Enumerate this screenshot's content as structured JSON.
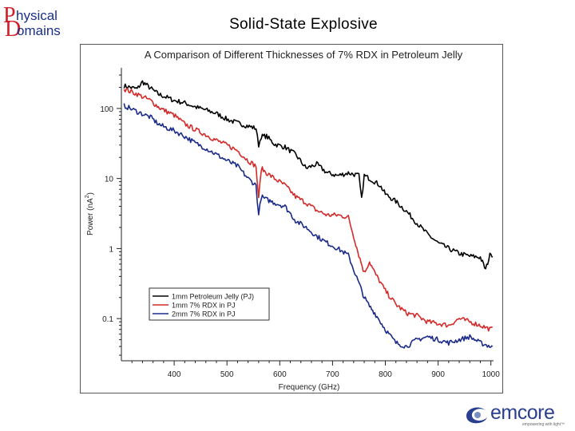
{
  "logo": {
    "top_initial": "P",
    "top_text": "hysical",
    "bottom_initial": "D",
    "bottom_text": "omains",
    "colors": {
      "red": "#d11f2a",
      "blue": "#1a2f8a"
    }
  },
  "page_title": "Solid-State Explosive",
  "chart_data": {
    "type": "line",
    "title": "A Comparison of Different Thicknesses of 7% RDX in Petroleum Jelly",
    "xlabel": "Frequency (GHz)",
    "ylabel": "Power (nA²)",
    "ylabel_parts": {
      "base": "Power (nA",
      "sup": "2",
      "close": ")"
    },
    "yscale": "log",
    "xlim": [
      300,
      1005
    ],
    "ylim": [
      0.025,
      380
    ],
    "x_ticks": [
      400,
      500,
      600,
      700,
      800,
      900,
      1000
    ],
    "x_tick_labels": [
      "400",
      "500",
      "600",
      "700",
      "800",
      "900",
      "1000"
    ],
    "y_ticks": [
      100,
      10,
      1,
      0.1
    ],
    "y_tick_labels": [
      "100",
      "10",
      "1",
      "0.1"
    ],
    "legend_position": "lower-left",
    "series": [
      {
        "name": "1mm Petroleum Jelly (PJ)",
        "color": "#000000",
        "x": [
          305,
          330,
          340,
          355,
          370,
          380,
          400,
          420,
          440,
          460,
          480,
          500,
          520,
          540,
          555,
          560,
          565,
          575,
          590,
          610,
          630,
          650,
          670,
          690,
          710,
          730,
          750,
          755,
          760,
          775,
          790,
          800,
          820,
          840,
          860,
          880,
          900,
          920,
          940,
          960,
          980,
          990,
          1000,
          1003
        ],
        "y": [
          210,
          190,
          240,
          195,
          160,
          150,
          130,
          120,
          105,
          95,
          85,
          70,
          62,
          56,
          52,
          30,
          40,
          40,
          31,
          28,
          22,
          14,
          16,
          12,
          11,
          12,
          11,
          5,
          11,
          9.5,
          8,
          6,
          4.7,
          3.4,
          2.3,
          1.6,
          1.2,
          1.0,
          0.85,
          0.78,
          0.75,
          0.5,
          0.9,
          0.75
        ]
      },
      {
        "name": "1mm 7% RDX in PJ",
        "color": "#d42a2a",
        "x": [
          305,
          330,
          355,
          370,
          380,
          400,
          420,
          440,
          460,
          480,
          500,
          520,
          540,
          555,
          560,
          565,
          575,
          590,
          610,
          630,
          650,
          670,
          690,
          710,
          730,
          740,
          750,
          760,
          770,
          780,
          800,
          820,
          840,
          860,
          880,
          900,
          920,
          940,
          960,
          980,
          1000,
          1003
        ],
        "y": [
          190,
          160,
          130,
          105,
          95,
          80,
          60,
          50,
          42,
          35,
          30,
          25,
          18,
          15,
          5,
          14,
          12,
          10,
          8,
          5.5,
          4.5,
          3.5,
          3.0,
          3.0,
          2.8,
          1.5,
          0.8,
          0.45,
          0.65,
          0.45,
          0.25,
          0.16,
          0.12,
          0.11,
          0.09,
          0.085,
          0.08,
          0.1,
          0.09,
          0.08,
          0.07,
          0.075
        ]
      },
      {
        "name": "2mm 7% RDX in PJ",
        "color": "#1a2a8a",
        "x": [
          305,
          330,
          355,
          370,
          380,
          400,
          420,
          440,
          460,
          480,
          500,
          520,
          540,
          555,
          560,
          565,
          575,
          590,
          610,
          630,
          650,
          670,
          690,
          710,
          730,
          740,
          750,
          760,
          770,
          780,
          800,
          820,
          840,
          860,
          880,
          900,
          920,
          940,
          960,
          980,
          1000,
          1003
        ],
        "y": [
          110,
          90,
          75,
          60,
          55,
          48,
          40,
          32,
          27,
          22,
          18,
          15,
          10,
          8,
          3,
          5.5,
          5,
          4.5,
          4,
          2.5,
          2.0,
          1.5,
          1.2,
          1.0,
          0.8,
          0.5,
          0.32,
          0.2,
          0.15,
          0.12,
          0.07,
          0.045,
          0.04,
          0.05,
          0.055,
          0.05,
          0.045,
          0.05,
          0.055,
          0.045,
          0.04,
          0.04
        ]
      }
    ]
  },
  "emcore": {
    "word": "emcore",
    "tagline": "empowering with light™",
    "color": "#2a3f8f"
  }
}
